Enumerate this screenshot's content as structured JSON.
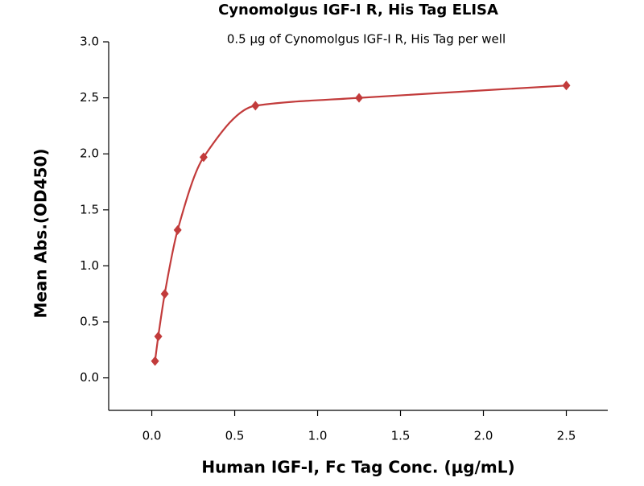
{
  "chart_data": {
    "type": "scatter",
    "title": "Cynomolgus IGF-I R, His Tag ELISA",
    "subtitle": "0.5 μg of Cynomolgus IGF-I R, His Tag per well",
    "x_label": "Human IGF-I, Fc Tag Conc. (μg/mL)",
    "y_label": "Mean Abs.(OD450)",
    "x": [
      0.0195,
      0.039,
      0.078,
      0.156,
      0.3125,
      0.625,
      1.25,
      2.5
    ],
    "series": [
      {
        "color": "#c23b3b",
        "values": [
          0.15,
          0.37,
          0.75,
          1.32,
          1.97,
          2.43,
          2.5,
          2.61
        ]
      }
    ],
    "xlim": [
      -0.26,
      2.75
    ],
    "ylim": [
      -0.29,
      3.0
    ],
    "xticks": [
      {
        "value": 0,
        "label": "0.0"
      },
      0.5,
      {
        "value": 1,
        "label": "1.0"
      },
      1.5,
      {
        "value": 2,
        "label": "2.0"
      },
      2.5
    ],
    "yticks": [
      {
        "value": 0,
        "label": "0.0"
      },
      0.5,
      {
        "value": 1,
        "label": "1.0"
      },
      1.5,
      {
        "value": 2,
        "label": "2.0"
      },
      2.5,
      {
        "value": 3,
        "label": "3.0"
      }
    ]
  }
}
